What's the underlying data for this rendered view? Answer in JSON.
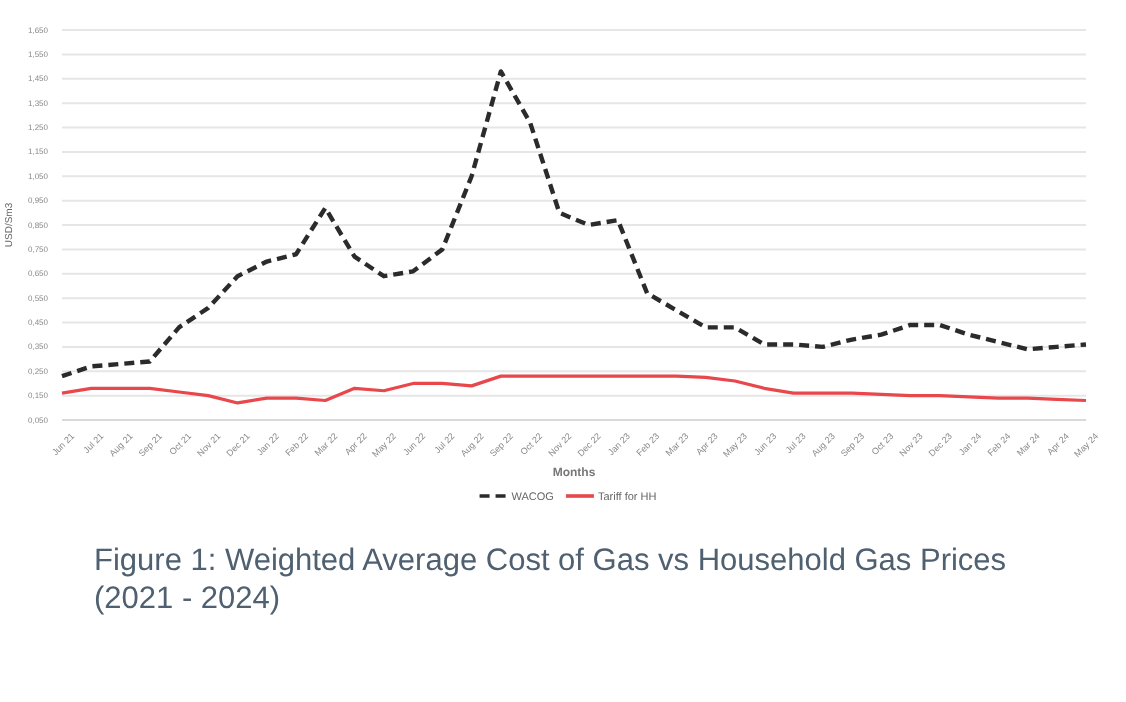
{
  "chart_data": {
    "type": "line",
    "title": "Figure 1: Weighted Average Cost of Gas vs Household Gas Prices (2021 - 2024)",
    "xlabel": "Months",
    "ylabel": "USD/Sm3",
    "categories": [
      "Jun 21",
      "Jul 21",
      "Aug 21",
      "Sep 21",
      "Oct 21",
      "Nov 21",
      "Dec 21",
      "Jan 22",
      "Feb 22",
      "Mar 22",
      "Apr 22",
      "May 22",
      "Jun 22",
      "Jul 22",
      "Aug 22",
      "Sep 22",
      "Oct 22",
      "Nov 22",
      "Dec 22",
      "Jan 23",
      "Feb 23",
      "Mar 23",
      "Apr 23",
      "May 23",
      "Jun 23",
      "Jul 23",
      "Aug 23",
      "Sep 23",
      "Oct 23",
      "Nov 23",
      "Dec 23",
      "Jan 24",
      "Feb 24",
      "Mar 24",
      "Apr 24",
      "May 24"
    ],
    "series": [
      {
        "name": "WACOG",
        "color": "#2b2b2b",
        "line_style": "dashed",
        "values": [
          0.23,
          0.27,
          0.28,
          0.29,
          0.43,
          0.51,
          0.64,
          0.7,
          0.73,
          0.92,
          0.72,
          0.64,
          0.66,
          0.75,
          1.05,
          1.48,
          1.27,
          0.9,
          0.85,
          0.87,
          0.57,
          0.5,
          0.43,
          0.43,
          0.36,
          0.36,
          0.35,
          0.38,
          0.4,
          0.44,
          0.44,
          0.4,
          0.37,
          0.34,
          0.35,
          0.36
        ]
      },
      {
        "name": "Tariff for HH",
        "color": "#e8474b",
        "line_style": "solid",
        "values": [
          0.16,
          0.18,
          0.18,
          0.18,
          0.165,
          0.15,
          0.12,
          0.14,
          0.14,
          0.13,
          0.18,
          0.17,
          0.2,
          0.2,
          0.19,
          0.23,
          0.23,
          0.23,
          0.23,
          0.23,
          0.23,
          0.23,
          0.225,
          0.21,
          0.18,
          0.16,
          0.16,
          0.16,
          0.155,
          0.15,
          0.15,
          0.145,
          0.14,
          0.14,
          0.135,
          0.13
        ]
      }
    ],
    "ylim": [
      0.05,
      1.65
    ],
    "yticks": [
      {
        "value": 0.05,
        "label": "0,050"
      },
      {
        "value": 0.15,
        "label": "0,150"
      },
      {
        "value": 0.25,
        "label": "0,250"
      },
      {
        "value": 0.35,
        "label": "0,350"
      },
      {
        "value": 0.45,
        "label": "0,450"
      },
      {
        "value": 0.55,
        "label": "0,550"
      },
      {
        "value": 0.65,
        "label": "0,650"
      },
      {
        "value": 0.75,
        "label": "0,750"
      },
      {
        "value": 0.85,
        "label": "0,850"
      },
      {
        "value": 0.95,
        "label": "0,950"
      },
      {
        "value": 1.05,
        "label": "1,050"
      },
      {
        "value": 1.15,
        "label": "1,150"
      },
      {
        "value": 1.25,
        "label": "1,250"
      },
      {
        "value": 1.35,
        "label": "1,350"
      },
      {
        "value": 1.45,
        "label": "1,450"
      },
      {
        "value": 1.55,
        "label": "1,550"
      },
      {
        "value": 1.65,
        "label": "1,650"
      }
    ],
    "grid": "y",
    "legend": "bottom",
    "marker": "none"
  }
}
